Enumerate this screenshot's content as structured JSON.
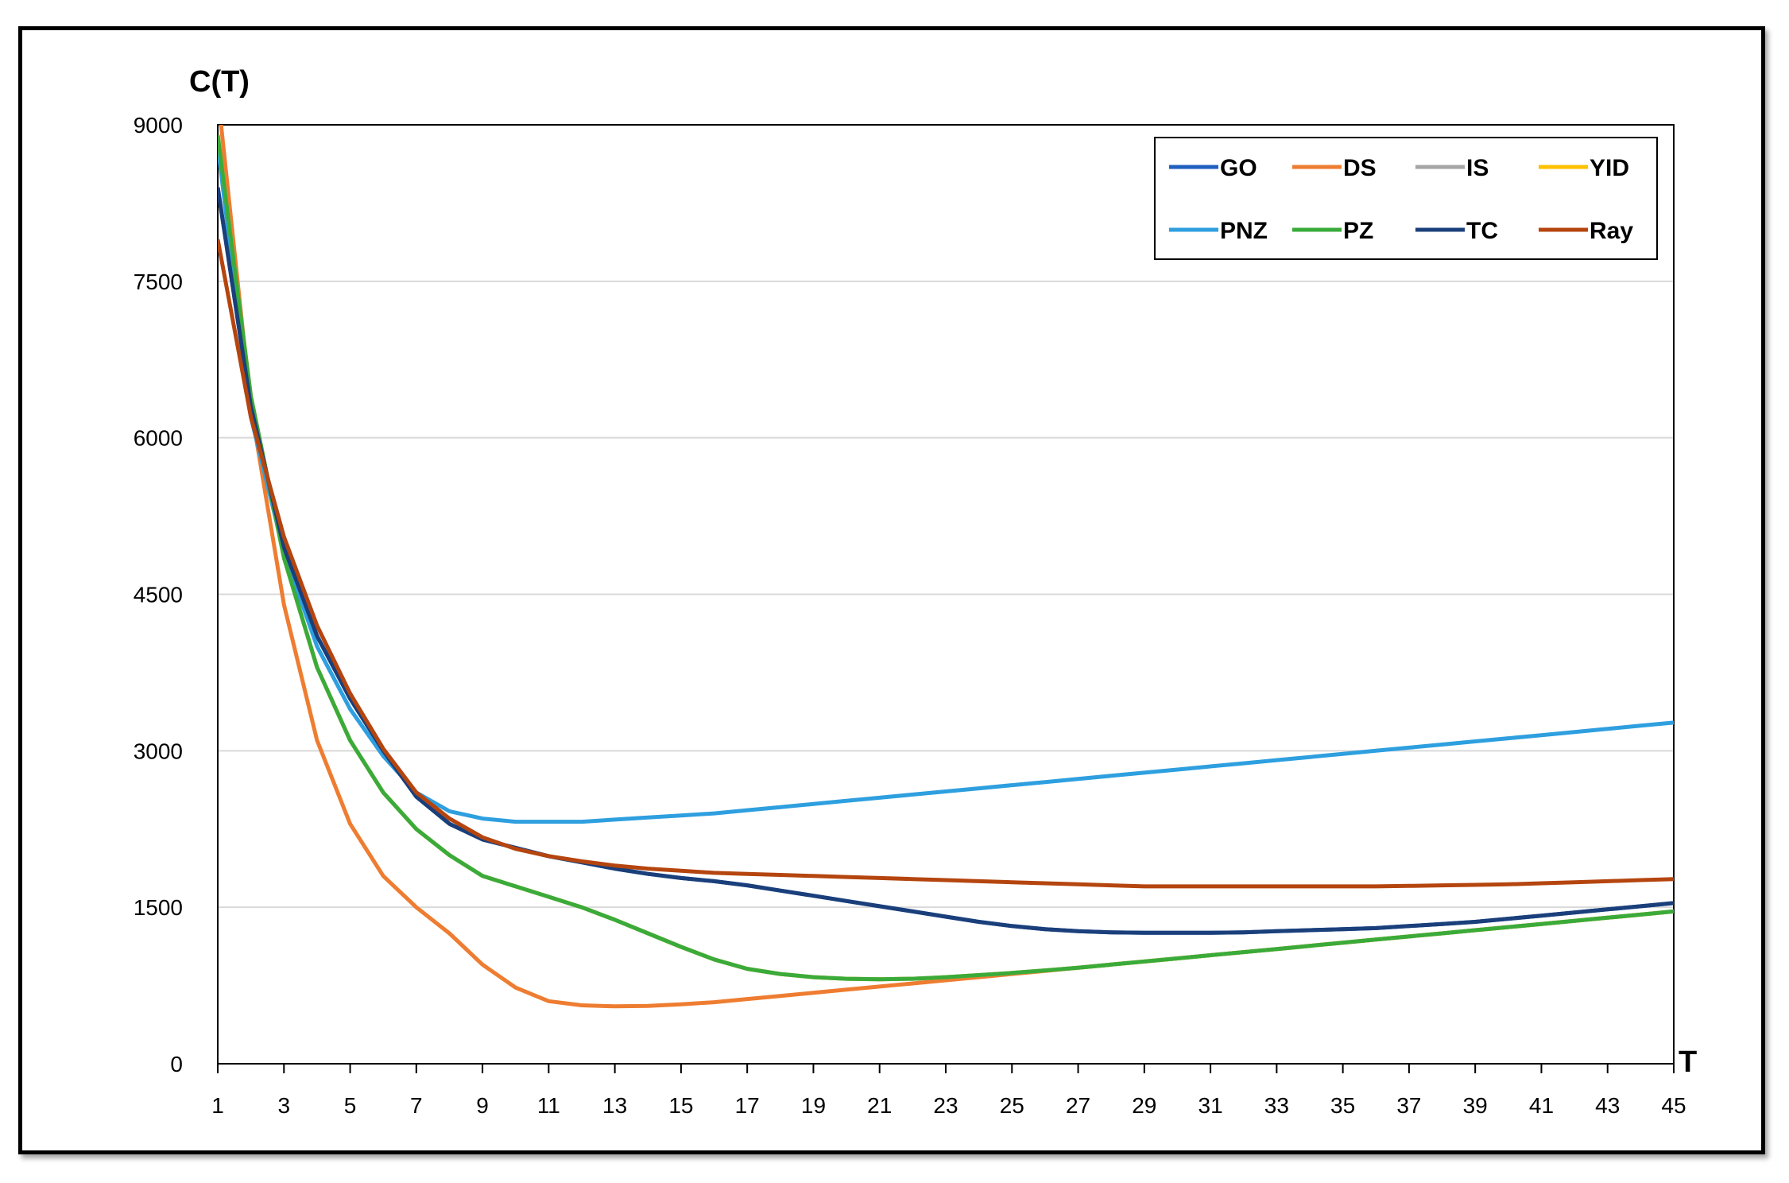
{
  "chart_data": {
    "type": "line",
    "ylabel": "C(T)",
    "xlabel": "T",
    "xlim": [
      1,
      45
    ],
    "ylim": [
      0,
      9000
    ],
    "x_ticks": [
      1,
      3,
      5,
      7,
      9,
      11,
      13,
      15,
      17,
      19,
      21,
      23,
      25,
      27,
      29,
      31,
      33,
      35,
      37,
      39,
      41,
      43,
      45
    ],
    "y_ticks": [
      0,
      1500,
      3000,
      4500,
      6000,
      7500,
      9000
    ],
    "grid": "horizontal",
    "legend_position": "top-right",
    "x": [
      1,
      2,
      3,
      4,
      5,
      6,
      7,
      8,
      9,
      10,
      11,
      12,
      13,
      14,
      15,
      16,
      17,
      18,
      19,
      20,
      21,
      22,
      23,
      24,
      25,
      26,
      27,
      28,
      29,
      30,
      31,
      32,
      33,
      34,
      35,
      36,
      37,
      38,
      39,
      40,
      41,
      42,
      43,
      44,
      45
    ],
    "series": [
      {
        "name": "GO",
        "color": "#1f5fbf",
        "values": [
          8400,
          6300,
          4950,
          4100,
          3500,
          3000,
          2560,
          2300,
          2150,
          2070,
          1990,
          1930,
          1870,
          1820,
          1780,
          1750,
          1710,
          1660,
          1610,
          1560,
          1510,
          1460,
          1410,
          1360,
          1320,
          1290,
          1270,
          1260,
          1255,
          1255,
          1255,
          1260,
          1270,
          1280,
          1290,
          1300,
          1320,
          1340,
          1360,
          1390,
          1420,
          1450,
          1480,
          1510,
          1540
        ]
      },
      {
        "name": "DS",
        "color": "#ee7d31",
        "values": [
          9300,
          6300,
          4400,
          3100,
          2300,
          1800,
          1500,
          1250,
          950,
          730,
          600,
          560,
          550,
          555,
          570,
          590,
          620,
          650,
          680,
          710,
          740,
          770,
          800,
          830,
          860,
          890,
          920,
          950,
          980,
          1010,
          1040,
          1070,
          1100,
          1130,
          1160,
          1190,
          1220,
          1250,
          1280,
          1310,
          1340,
          1370,
          1400,
          1430,
          1460
        ]
      },
      {
        "name": "IS",
        "color": "#a5a5a5",
        "values": [
          8900,
          6400,
          4850,
          3800,
          3100,
          2600,
          2250,
          2000,
          1800,
          1700,
          1600,
          1500,
          1380,
          1250,
          1120,
          1000,
          910,
          860,
          830,
          815,
          810,
          815,
          830,
          850,
          870,
          895,
          920,
          950,
          980,
          1010,
          1040,
          1070,
          1100,
          1130,
          1160,
          1190,
          1220,
          1250,
          1280,
          1310,
          1340,
          1370,
          1400,
          1430,
          1460
        ]
      },
      {
        "name": "YID",
        "color": "#ffc000",
        "values": [
          8900,
          6400,
          4850,
          3800,
          3100,
          2600,
          2250,
          2000,
          1800,
          1700,
          1600,
          1500,
          1380,
          1250,
          1120,
          1000,
          910,
          860,
          830,
          815,
          810,
          815,
          830,
          850,
          870,
          895,
          920,
          950,
          980,
          1010,
          1040,
          1070,
          1100,
          1130,
          1160,
          1190,
          1220,
          1250,
          1280,
          1310,
          1340,
          1370,
          1400,
          1430,
          1460
        ]
      },
      {
        "name": "PNZ",
        "color": "#2e9fdf",
        "values": [
          8800,
          6200,
          4900,
          4000,
          3400,
          2950,
          2600,
          2420,
          2350,
          2320,
          2320,
          2320,
          2340,
          2360,
          2380,
          2400,
          2430,
          2460,
          2490,
          2520,
          2550,
          2580,
          2610,
          2640,
          2670,
          2700,
          2730,
          2760,
          2790,
          2820,
          2850,
          2880,
          2910,
          2940,
          2970,
          3000,
          3030,
          3060,
          3090,
          3120,
          3150,
          3180,
          3210,
          3240,
          3270
        ]
      },
      {
        "name": "PZ",
        "color": "#3aab3a",
        "values": [
          8900,
          6400,
          4850,
          3800,
          3100,
          2600,
          2250,
          2000,
          1800,
          1700,
          1600,
          1500,
          1380,
          1250,
          1120,
          1000,
          910,
          860,
          830,
          815,
          810,
          815,
          830,
          850,
          870,
          895,
          920,
          950,
          980,
          1010,
          1040,
          1070,
          1100,
          1130,
          1160,
          1190,
          1220,
          1250,
          1280,
          1310,
          1340,
          1370,
          1400,
          1430,
          1460
        ]
      },
      {
        "name": "TC",
        "color": "#1a3f7a",
        "values": [
          8400,
          6300,
          4950,
          4100,
          3500,
          3000,
          2560,
          2300,
          2150,
          2070,
          1990,
          1930,
          1870,
          1820,
          1780,
          1750,
          1710,
          1660,
          1610,
          1560,
          1510,
          1460,
          1410,
          1360,
          1320,
          1290,
          1270,
          1260,
          1255,
          1255,
          1255,
          1260,
          1270,
          1280,
          1290,
          1300,
          1320,
          1340,
          1360,
          1390,
          1420,
          1450,
          1480,
          1510,
          1540
        ]
      },
      {
        "name": "Ray",
        "color": "#b5450f",
        "values": [
          7900,
          6200,
          5050,
          4200,
          3550,
          3020,
          2600,
          2350,
          2170,
          2060,
          1990,
          1940,
          1900,
          1870,
          1850,
          1830,
          1820,
          1810,
          1800,
          1790,
          1780,
          1770,
          1760,
          1750,
          1740,
          1730,
          1720,
          1710,
          1700,
          1700,
          1700,
          1700,
          1700,
          1700,
          1700,
          1700,
          1705,
          1710,
          1715,
          1720,
          1730,
          1740,
          1750,
          1760,
          1770
        ]
      }
    ]
  }
}
